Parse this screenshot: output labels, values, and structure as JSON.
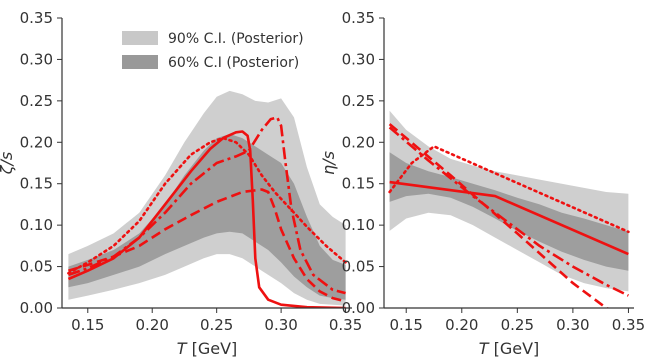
{
  "chart_data": [
    {
      "type": "area",
      "panel": "left",
      "xlabel_italic": "T",
      "xlabel_unit": "[GeV]",
      "ylabel": "ζ/s",
      "xlim": [
        0.13,
        0.355
      ],
      "ylim": [
        0,
        0.35
      ],
      "xticks": [
        "0.15",
        "0.20",
        "0.25",
        "0.30",
        "0.35"
      ],
      "xtick_values": [
        0.15,
        0.2,
        0.25,
        0.3,
        0.35
      ],
      "yticks": [
        "0.00",
        "0.05",
        "0.10",
        "0.15",
        "0.20",
        "0.25",
        "0.30",
        "0.35"
      ],
      "ytick_values": [
        0,
        0.05,
        0.1,
        0.15,
        0.2,
        0.25,
        0.3,
        0.35
      ],
      "grid": false,
      "legend_position": "top-center",
      "legend": [
        {
          "label": "90% C.I. (Posterior)",
          "color": "#c8c8c8"
        },
        {
          "label": "60% C.I (Posterior)",
          "color": "#999999"
        }
      ],
      "bands": [
        {
          "name": "90% C.I. (Posterior)",
          "color": "#cfcfcf",
          "x": [
            0.135,
            0.15,
            0.17,
            0.19,
            0.21,
            0.225,
            0.24,
            0.25,
            0.26,
            0.27,
            0.28,
            0.29,
            0.3,
            0.31,
            0.32,
            0.33,
            0.34,
            0.35
          ],
          "upper": [
            0.065,
            0.075,
            0.09,
            0.115,
            0.16,
            0.2,
            0.235,
            0.255,
            0.262,
            0.258,
            0.25,
            0.248,
            0.253,
            0.23,
            0.17,
            0.125,
            0.11,
            0.1
          ],
          "lower": [
            0.01,
            0.015,
            0.022,
            0.03,
            0.04,
            0.05,
            0.06,
            0.065,
            0.065,
            0.06,
            0.05,
            0.04,
            0.03,
            0.018,
            0.01,
            0.005,
            0.004,
            0.003
          ]
        },
        {
          "name": "60% C.I (Posterior)",
          "color": "#9e9e9e",
          "x": [
            0.135,
            0.15,
            0.17,
            0.19,
            0.21,
            0.225,
            0.24,
            0.25,
            0.26,
            0.27,
            0.28,
            0.29,
            0.3,
            0.31,
            0.32,
            0.33,
            0.34,
            0.35
          ],
          "upper": [
            0.05,
            0.058,
            0.07,
            0.09,
            0.125,
            0.16,
            0.19,
            0.205,
            0.21,
            0.205,
            0.195,
            0.185,
            0.175,
            0.15,
            0.11,
            0.075,
            0.058,
            0.052
          ],
          "lower": [
            0.025,
            0.03,
            0.04,
            0.05,
            0.065,
            0.075,
            0.085,
            0.09,
            0.092,
            0.09,
            0.08,
            0.07,
            0.055,
            0.038,
            0.025,
            0.015,
            0.012,
            0.01
          ]
        }
      ],
      "series": [
        {
          "style": "solid",
          "color": "#ee1111",
          "x": [
            0.135,
            0.15,
            0.17,
            0.19,
            0.21,
            0.23,
            0.245,
            0.255,
            0.265,
            0.27,
            0.274,
            0.276,
            0.278,
            0.28,
            0.283,
            0.29,
            0.3,
            0.32,
            0.35
          ],
          "y": [
            0.035,
            0.045,
            0.06,
            0.085,
            0.125,
            0.165,
            0.192,
            0.205,
            0.212,
            0.213,
            0.208,
            0.19,
            0.13,
            0.06,
            0.025,
            0.01,
            0.004,
            0.001,
            0.0
          ]
        },
        {
          "style": "dashed",
          "color": "#ee1111",
          "x": [
            0.135,
            0.15,
            0.17,
            0.19,
            0.21,
            0.23,
            0.25,
            0.27,
            0.285,
            0.29,
            0.295,
            0.3,
            0.31,
            0.32,
            0.33,
            0.34,
            0.35
          ],
          "y": [
            0.045,
            0.052,
            0.062,
            0.075,
            0.095,
            0.112,
            0.128,
            0.14,
            0.143,
            0.14,
            0.12,
            0.095,
            0.06,
            0.035,
            0.02,
            0.012,
            0.008
          ]
        },
        {
          "style": "dashdot",
          "color": "#ee1111",
          "x": [
            0.135,
            0.15,
            0.17,
            0.19,
            0.21,
            0.23,
            0.25,
            0.265,
            0.275,
            0.285,
            0.292,
            0.297,
            0.3,
            0.303,
            0.308,
            0.315,
            0.325,
            0.34,
            0.35
          ],
          "y": [
            0.04,
            0.048,
            0.062,
            0.085,
            0.115,
            0.15,
            0.175,
            0.183,
            0.19,
            0.215,
            0.228,
            0.23,
            0.22,
            0.18,
            0.12,
            0.07,
            0.04,
            0.022,
            0.018
          ]
        },
        {
          "style": "dotted",
          "color": "#ee1111",
          "x": [
            0.135,
            0.15,
            0.17,
            0.19,
            0.21,
            0.23,
            0.245,
            0.255,
            0.265,
            0.275,
            0.285,
            0.295,
            0.31,
            0.32,
            0.335,
            0.35
          ],
          "y": [
            0.042,
            0.055,
            0.075,
            0.105,
            0.15,
            0.185,
            0.2,
            0.205,
            0.2,
            0.185,
            0.16,
            0.14,
            0.115,
            0.098,
            0.075,
            0.055
          ]
        }
      ]
    },
    {
      "type": "area",
      "panel": "right",
      "xlabel_italic": "T",
      "xlabel_unit": "[GeV]",
      "ylabel": "η/s",
      "xlim": [
        0.13,
        0.355
      ],
      "ylim": [
        0,
        0.35
      ],
      "xticks": [
        "0.15",
        "0.20",
        "0.25",
        "0.30",
        "0.35"
      ],
      "xtick_values": [
        0.15,
        0.2,
        0.25,
        0.3,
        0.35
      ],
      "yticks": [
        "0.00",
        "0.05",
        "0.10",
        "0.15",
        "0.20",
        "0.25",
        "0.30",
        "0.35"
      ],
      "ytick_values": [
        0,
        0.05,
        0.1,
        0.15,
        0.2,
        0.25,
        0.3,
        0.35
      ],
      "grid": false,
      "bands": [
        {
          "name": "90% C.I. (Posterior)",
          "color": "#cfcfcf",
          "x": [
            0.135,
            0.15,
            0.17,
            0.19,
            0.21,
            0.23,
            0.25,
            0.27,
            0.29,
            0.31,
            0.33,
            0.35
          ],
          "upper": [
            0.238,
            0.215,
            0.195,
            0.18,
            0.172,
            0.165,
            0.16,
            0.155,
            0.15,
            0.145,
            0.14,
            0.138
          ],
          "lower": [
            0.093,
            0.108,
            0.115,
            0.112,
            0.1,
            0.085,
            0.07,
            0.055,
            0.04,
            0.03,
            0.024,
            0.02
          ]
        },
        {
          "name": "60% C.I (Posterior)",
          "color": "#9e9e9e",
          "x": [
            0.135,
            0.15,
            0.17,
            0.19,
            0.21,
            0.23,
            0.25,
            0.27,
            0.29,
            0.31,
            0.33,
            0.35
          ],
          "upper": [
            0.188,
            0.175,
            0.165,
            0.158,
            0.15,
            0.142,
            0.133,
            0.125,
            0.115,
            0.108,
            0.1,
            0.092
          ],
          "lower": [
            0.128,
            0.135,
            0.138,
            0.133,
            0.122,
            0.108,
            0.093,
            0.08,
            0.068,
            0.058,
            0.05,
            0.045
          ]
        }
      ],
      "series": [
        {
          "style": "solid",
          "color": "#ee1111",
          "x": [
            0.135,
            0.23,
            0.35
          ],
          "y": [
            0.152,
            0.135,
            0.065
          ]
        },
        {
          "style": "dashed",
          "color": "#ee1111",
          "x": [
            0.135,
            0.19,
            0.25,
            0.3,
            0.33,
            0.35
          ],
          "y": [
            0.222,
            0.16,
            0.09,
            0.03,
            0.0,
            -0.01
          ]
        },
        {
          "style": "dashdot",
          "color": "#ee1111",
          "x": [
            0.135,
            0.17,
            0.21,
            0.25,
            0.27,
            0.3,
            0.33,
            0.35
          ],
          "y": [
            0.218,
            0.178,
            0.135,
            0.095,
            0.075,
            0.05,
            0.028,
            0.015
          ]
        },
        {
          "style": "dotted",
          "color": "#ee1111",
          "x": [
            0.135,
            0.155,
            0.175,
            0.35
          ],
          "y": [
            0.14,
            0.175,
            0.195,
            0.092
          ]
        }
      ]
    }
  ]
}
